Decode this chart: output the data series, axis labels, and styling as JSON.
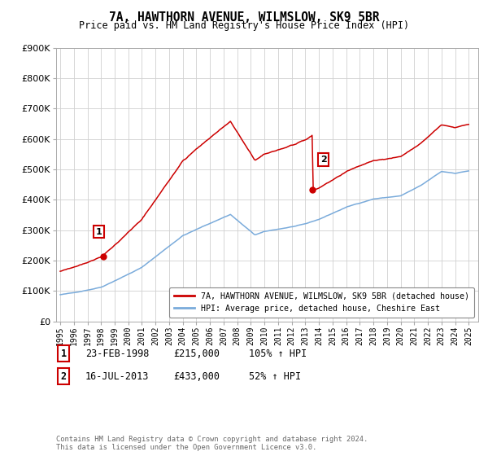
{
  "title": "7A, HAWTHORN AVENUE, WILMSLOW, SK9 5BR",
  "subtitle": "Price paid vs. HM Land Registry's House Price Index (HPI)",
  "legend_label_red": "7A, HAWTHORN AVENUE, WILMSLOW, SK9 5BR (detached house)",
  "legend_label_blue": "HPI: Average price, detached house, Cheshire East",
  "sale1_num": "1",
  "sale1_date": "23-FEB-1998",
  "sale1_price": 215000,
  "sale1_price_str": "£215,000",
  "sale1_label": "105% ↑ HPI",
  "sale1_year": 1998.14,
  "sale2_num": "2",
  "sale2_date": "16-JUL-2013",
  "sale2_price": 433000,
  "sale2_price_str": "£433,000",
  "sale2_label": "52% ↑ HPI",
  "sale2_year": 2013.54,
  "footer": "Contains HM Land Registry data © Crown copyright and database right 2024.\nThis data is licensed under the Open Government Licence v3.0.",
  "ylim": [
    0,
    900000
  ],
  "yticks": [
    0,
    100000,
    200000,
    300000,
    400000,
    500000,
    600000,
    700000,
    800000,
    900000
  ],
  "xlim_start": 1994.7,
  "xlim_end": 2025.7,
  "red_color": "#cc0000",
  "blue_color": "#7aabdb",
  "background_color": "#ffffff",
  "grid_color": "#d0d0d0"
}
